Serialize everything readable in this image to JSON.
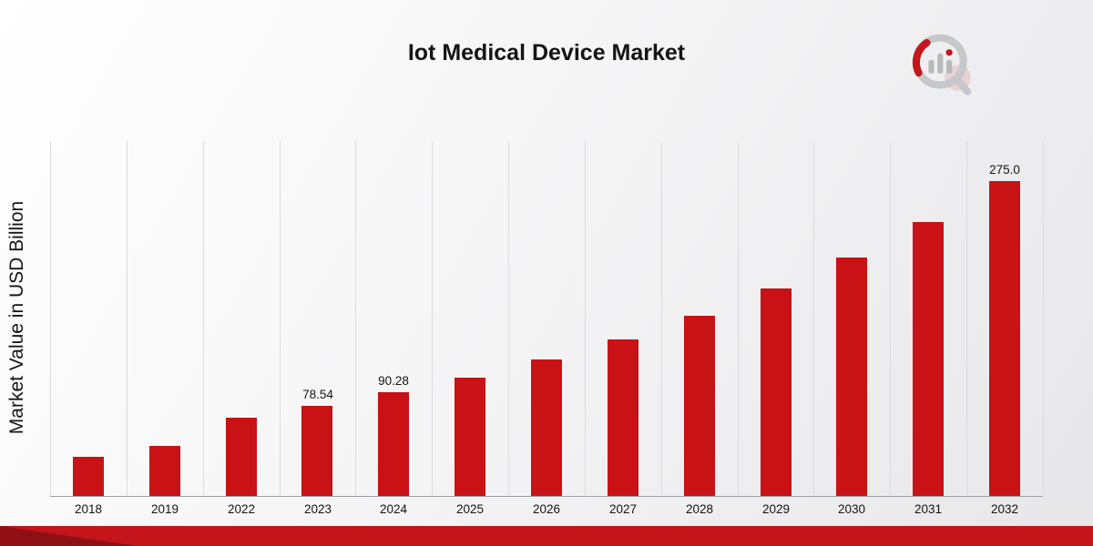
{
  "title": "Iot Medical Device Market",
  "y_axis_label": "Market Value in USD Billion",
  "logo": "market-research-bar-chart-magnifier-logo",
  "colors": {
    "bar": "#c81216",
    "gridline": "#dcdcde",
    "footer": "#c4151a",
    "footer_dark": "#8e1014",
    "logo_gray": "#c5c7ca",
    "logo_red": "#c4161b"
  },
  "chart_data": {
    "type": "bar",
    "title": "Iot Medical Device Market",
    "xlabel": "",
    "ylabel": "Market Value in USD Billion",
    "categories": [
      "2018",
      "2019",
      "2022",
      "2023",
      "2024",
      "2025",
      "2026",
      "2027",
      "2028",
      "2029",
      "2030",
      "2031",
      "2032"
    ],
    "values": [
      34,
      44,
      68.5,
      78.54,
      90.28,
      103.7,
      119.2,
      137.0,
      157.4,
      180.9,
      207.9,
      238.9,
      275.0
    ],
    "data_labels": [
      "",
      "",
      "",
      "78.54",
      "90.28",
      "",
      "",
      "",
      "",
      "",
      "",
      "",
      "275.0"
    ],
    "bar_color": "#c81216",
    "ylim": [
      0,
      310
    ],
    "grid": "vertical",
    "legend": "none"
  }
}
